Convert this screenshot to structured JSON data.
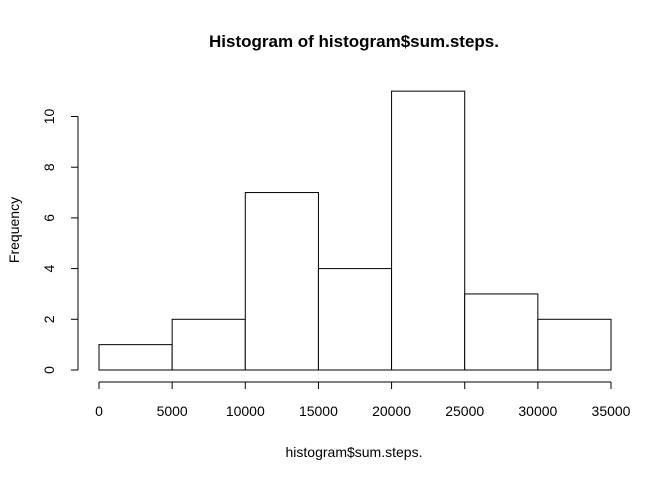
{
  "chart_data": {
    "type": "bar",
    "title": "Histogram of histogram$sum.steps.",
    "xlabel": "histogram$sum.steps.",
    "ylabel": "Frequency",
    "bins": [
      {
        "from": 0,
        "to": 5000,
        "count": 1
      },
      {
        "from": 5000,
        "to": 10000,
        "count": 2
      },
      {
        "from": 10000,
        "to": 15000,
        "count": 7
      },
      {
        "from": 15000,
        "to": 20000,
        "count": 4
      },
      {
        "from": 20000,
        "to": 25000,
        "count": 11
      },
      {
        "from": 25000,
        "to": 30000,
        "count": 3
      },
      {
        "from": 30000,
        "to": 35000,
        "count": 2
      }
    ],
    "x_ticks": [
      0,
      5000,
      10000,
      15000,
      20000,
      25000,
      30000,
      35000
    ],
    "y_ticks": [
      0,
      2,
      4,
      6,
      8,
      10
    ],
    "xlim": [
      0,
      35000
    ],
    "ylim": [
      0,
      11
    ],
    "grid": false,
    "bar_fill": "#ffffff",
    "bar_stroke": "#000000"
  }
}
